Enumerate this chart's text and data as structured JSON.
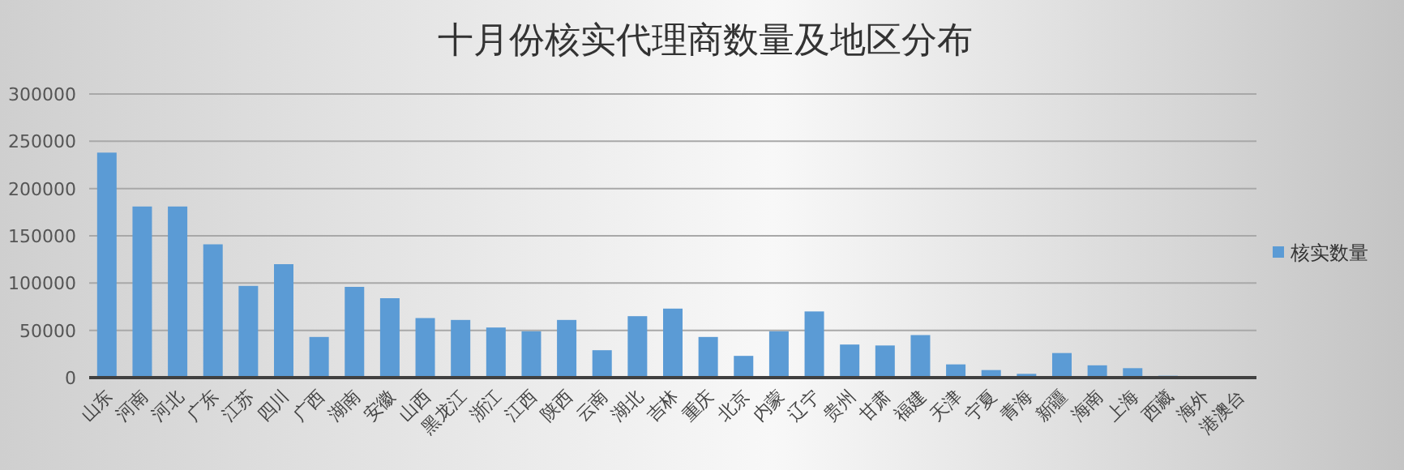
{
  "chart_data": {
    "type": "bar",
    "title": "十月份核实代理商数量及地区分布",
    "categories": [
      "山东",
      "河南",
      "河北",
      "广东",
      "江苏",
      "四川",
      "广西",
      "湖南",
      "安徽",
      "山西",
      "黑龙江",
      "浙江",
      "江西",
      "陕西",
      "云南",
      "湖北",
      "吉林",
      "重庆",
      "北京",
      "内蒙",
      "辽宁",
      "贵州",
      "甘肃",
      "福建",
      "天津",
      "宁夏",
      "青海",
      "新疆",
      "海南",
      "上海",
      "西藏",
      "海外",
      "港澳台"
    ],
    "series": [
      {
        "name": "核实数量",
        "color": "#5b9bd5",
        "values": [
          238000,
          181000,
          181000,
          141000,
          97000,
          120000,
          43000,
          96000,
          84000,
          63000,
          61000,
          53000,
          49000,
          61000,
          29000,
          65000,
          73000,
          43000,
          23000,
          49000,
          70000,
          35000,
          34000,
          45000,
          14000,
          8000,
          4000,
          26000,
          13000,
          10000,
          2000,
          1000,
          500
        ]
      }
    ],
    "ylim": [
      0,
      300000
    ],
    "yticks": [
      0,
      50000,
      100000,
      150000,
      200000,
      250000,
      300000
    ],
    "grid": "y",
    "legend": "right"
  }
}
